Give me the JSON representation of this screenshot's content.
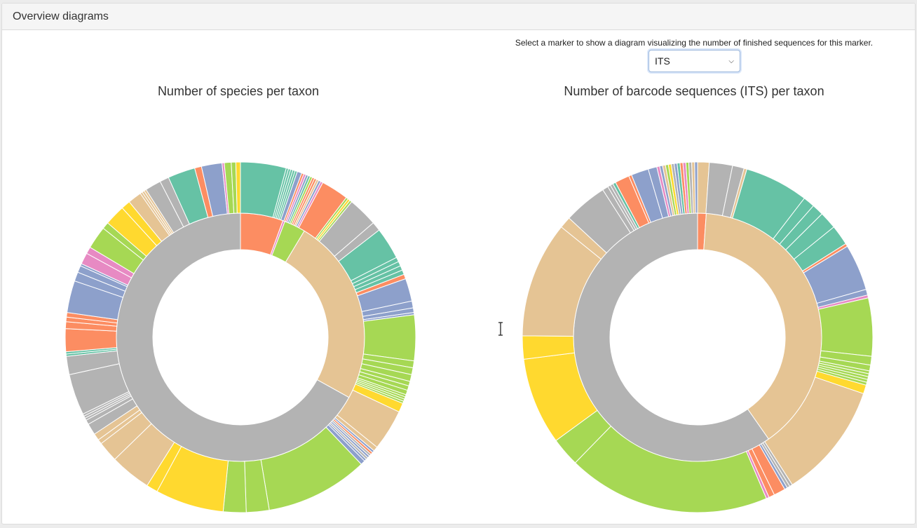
{
  "panel": {
    "heading": "Overview diagrams"
  },
  "marker": {
    "hint": "Select a marker to show a diagram visualizing the number of finished sequences for this marker.",
    "selected": "ITS"
  },
  "charts": {
    "left_title": "Number of species per taxon",
    "right_title": "Number of barcode sequences (ITS) per taxon"
  },
  "colors": {
    "grey": "#b3b3b3",
    "tan": "#e5c494",
    "green": "#a6d854",
    "yellow": "#ffd92f",
    "orange": "#fc8d62",
    "teal": "#66c2a5",
    "blue": "#8da0cb",
    "pink": "#e78ac3"
  },
  "chart_data": [
    {
      "type": "sunburst",
      "title": "Number of species per taxon",
      "inner": [
        {
          "color": "orange",
          "value": 20
        },
        {
          "color": "pink",
          "value": 1
        },
        {
          "color": "green",
          "value": 10
        },
        {
          "color": "tan",
          "value": 88
        },
        {
          "color": "grey",
          "value": 241
        }
      ],
      "outer": [
        {
          "color": "teal",
          "value": 20
        },
        {
          "color": "teal",
          "value": 1
        },
        {
          "color": "teal",
          "value": 1
        },
        {
          "color": "teal",
          "value": 1
        },
        {
          "color": "teal",
          "value": 1
        },
        {
          "color": "teal",
          "value": 1
        },
        {
          "color": "blue",
          "value": 2
        },
        {
          "color": "orange",
          "value": 1
        },
        {
          "color": "pink",
          "value": 1
        },
        {
          "color": "blue",
          "value": 1
        },
        {
          "color": "teal",
          "value": 1
        },
        {
          "color": "green",
          "value": 1
        },
        {
          "color": "orange",
          "value": 1
        },
        {
          "color": "orange",
          "value": 1
        },
        {
          "color": "tan",
          "value": 1
        },
        {
          "color": "blue",
          "value": 1
        },
        {
          "color": "pink",
          "value": 1
        },
        {
          "color": "orange",
          "value": 12
        },
        {
          "color": "green",
          "value": 1
        },
        {
          "color": "yellow",
          "value": 1
        },
        {
          "color": "green",
          "value": 1
        },
        {
          "color": "grey",
          "value": 13
        },
        {
          "color": "grey",
          "value": 4
        },
        {
          "color": "teal",
          "value": 14
        },
        {
          "color": "teal",
          "value": 2
        },
        {
          "color": "teal",
          "value": 2
        },
        {
          "color": "teal",
          "value": 2
        },
        {
          "color": "teal",
          "value": 2
        },
        {
          "color": "orange",
          "value": 2
        },
        {
          "color": "blue",
          "value": 10
        },
        {
          "color": "blue",
          "value": 3
        },
        {
          "color": "blue",
          "value": 2
        },
        {
          "color": "blue",
          "value": 1
        },
        {
          "color": "green",
          "value": 20
        },
        {
          "color": "green",
          "value": 3
        },
        {
          "color": "green",
          "value": 3
        },
        {
          "color": "green",
          "value": 3
        },
        {
          "color": "green",
          "value": 2
        },
        {
          "color": "green",
          "value": 2
        },
        {
          "color": "green",
          "value": 2
        },
        {
          "color": "green",
          "value": 1
        },
        {
          "color": "green",
          "value": 1
        },
        {
          "color": "green",
          "value": 1
        },
        {
          "color": "green",
          "value": 1
        },
        {
          "color": "yellow",
          "value": 4
        },
        {
          "color": "tan",
          "value": 18
        },
        {
          "color": "tan",
          "value": 2
        },
        {
          "color": "blue",
          "value": 1
        },
        {
          "color": "orange",
          "value": 1
        },
        {
          "color": "grey",
          "value": 1
        },
        {
          "color": "blue",
          "value": 1
        },
        {
          "color": "grey",
          "value": 1
        },
        {
          "color": "blue",
          "value": 1
        },
        {
          "color": "blue",
          "value": 2
        },
        {
          "color": "green",
          "value": 45
        },
        {
          "color": "green",
          "value": 10
        },
        {
          "color": "green",
          "value": 10
        },
        {
          "color": "yellow",
          "value": 30
        },
        {
          "color": "yellow",
          "value": 5
        },
        {
          "color": "tan",
          "value": 18
        },
        {
          "color": "tan",
          "value": 9
        },
        {
          "color": "tan",
          "value": 2
        },
        {
          "color": "tan",
          "value": 3
        },
        {
          "color": "grey",
          "value": 5
        },
        {
          "color": "grey",
          "value": 2
        },
        {
          "color": "grey",
          "value": 1
        },
        {
          "color": "grey",
          "value": 1
        },
        {
          "color": "grey",
          "value": 1
        },
        {
          "color": "grey",
          "value": 18
        },
        {
          "color": "grey",
          "value": 8
        },
        {
          "color": "teal",
          "value": 1
        },
        {
          "color": "teal",
          "value": 1
        },
        {
          "color": "orange",
          "value": 10
        },
        {
          "color": "orange",
          "value": 3
        },
        {
          "color": "orange",
          "value": 2
        },
        {
          "color": "orange",
          "value": 2
        },
        {
          "color": "blue",
          "value": 14
        },
        {
          "color": "blue",
          "value": 4
        },
        {
          "color": "blue",
          "value": 3
        },
        {
          "color": "blue",
          "value": 1
        },
        {
          "color": "pink",
          "value": 5
        },
        {
          "color": "pink",
          "value": 3
        },
        {
          "color": "green",
          "value": 10
        },
        {
          "color": "green",
          "value": 3
        },
        {
          "color": "yellow",
          "value": 9
        },
        {
          "color": "yellow",
          "value": 4
        },
        {
          "color": "tan",
          "value": 6
        },
        {
          "color": "tan",
          "value": 1
        },
        {
          "color": "tan",
          "value": 1
        },
        {
          "color": "tan",
          "value": 1
        },
        {
          "color": "grey",
          "value": 7
        },
        {
          "color": "grey",
          "value": 4
        },
        {
          "color": "teal",
          "value": 12
        },
        {
          "color": "orange",
          "value": 3
        },
        {
          "color": "blue",
          "value": 9
        },
        {
          "color": "pink",
          "value": 1
        },
        {
          "color": "green",
          "value": 3
        },
        {
          "color": "green",
          "value": 2
        },
        {
          "color": "yellow",
          "value": 2
        }
      ]
    },
    {
      "type": "sunburst",
      "title": "Number of barcode sequences (ITS) per taxon",
      "inner": [
        {
          "color": "orange",
          "value": 3
        },
        {
          "color": "tan",
          "value": 105
        },
        {
          "color": "grey",
          "value": 160
        }
      ],
      "outer": [
        {
          "color": "tan",
          "value": 4
        },
        {
          "color": "grey",
          "value": 8
        },
        {
          "color": "grey",
          "value": 4
        },
        {
          "color": "tan",
          "value": 1
        },
        {
          "color": "teal",
          "value": 22
        },
        {
          "color": "teal",
          "value": 4
        },
        {
          "color": "teal",
          "value": 4
        },
        {
          "color": "teal",
          "value": 6
        },
        {
          "color": "teal",
          "value": 7
        },
        {
          "color": "orange",
          "value": 1
        },
        {
          "color": "blue",
          "value": 16
        },
        {
          "color": "blue",
          "value": 2
        },
        {
          "color": "pink",
          "value": 1
        },
        {
          "color": "green",
          "value": 20
        },
        {
          "color": "green",
          "value": 3
        },
        {
          "color": "green",
          "value": 2
        },
        {
          "color": "green",
          "value": 1
        },
        {
          "color": "green",
          "value": 1
        },
        {
          "color": "green",
          "value": 1
        },
        {
          "color": "green",
          "value": 1
        },
        {
          "color": "green",
          "value": 1
        },
        {
          "color": "yellow",
          "value": 3
        },
        {
          "color": "tan",
          "value": 40
        },
        {
          "color": "grey",
          "value": 1
        },
        {
          "color": "grey",
          "value": 1
        },
        {
          "color": "blue",
          "value": 1
        },
        {
          "color": "orange",
          "value": 4
        },
        {
          "color": "orange",
          "value": 2
        },
        {
          "color": "pink",
          "value": 1
        },
        {
          "color": "green",
          "value": 70
        },
        {
          "color": "green",
          "value": 10
        },
        {
          "color": "yellow",
          "value": 30
        },
        {
          "color": "yellow",
          "value": 8
        },
        {
          "color": "tan",
          "value": 40
        },
        {
          "color": "tan",
          "value": 4
        },
        {
          "color": "grey",
          "value": 15
        },
        {
          "color": "grey",
          "value": 2
        },
        {
          "color": "grey",
          "value": 1
        },
        {
          "color": "grey",
          "value": 1
        },
        {
          "color": "teal",
          "value": 1
        },
        {
          "color": "orange",
          "value": 5
        },
        {
          "color": "orange",
          "value": 1
        },
        {
          "color": "blue",
          "value": 6
        },
        {
          "color": "blue",
          "value": 3
        },
        {
          "color": "pink",
          "value": 1
        },
        {
          "color": "blue",
          "value": 1
        },
        {
          "color": "tan",
          "value": 1
        },
        {
          "color": "green",
          "value": 1
        },
        {
          "color": "yellow",
          "value": 1
        },
        {
          "color": "grey",
          "value": 1
        },
        {
          "color": "blue",
          "value": 1
        },
        {
          "color": "teal",
          "value": 1
        },
        {
          "color": "orange",
          "value": 1
        },
        {
          "color": "pink",
          "value": 1
        },
        {
          "color": "green",
          "value": 1
        },
        {
          "color": "grey",
          "value": 1
        },
        {
          "color": "tan",
          "value": 1
        },
        {
          "color": "blue",
          "value": 1
        }
      ]
    }
  ]
}
